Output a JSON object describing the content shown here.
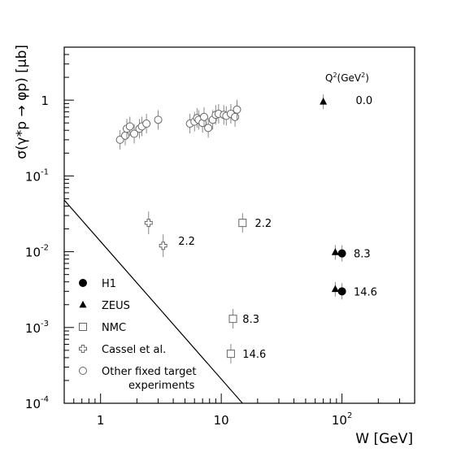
{
  "chart_data": {
    "type": "scatter",
    "xscale": "log",
    "yscale": "log",
    "xlim": [
      0.5,
      400
    ],
    "ylim": [
      0.0001,
      5
    ],
    "xlabel": "W [GeV]",
    "ylabel": "σ(γ*p → φp) [μb]",
    "xticks": [
      {
        "value": 1,
        "label": "1"
      },
      {
        "value": 10,
        "label": "10"
      },
      {
        "value": 100,
        "label": "10",
        "exp": "2"
      }
    ],
    "yticks": [
      {
        "value": 1,
        "label": "1"
      },
      {
        "value": 0.1,
        "label": "10",
        "exp": "-1"
      },
      {
        "value": 0.01,
        "label": "10",
        "exp": "-2"
      },
      {
        "value": 0.001,
        "label": "10",
        "exp": "-3"
      },
      {
        "value": 0.0001,
        "label": "10",
        "exp": "-4"
      }
    ],
    "q2_header": {
      "text": "Q",
      "sup": "2",
      "rest": "(GeV",
      "sup2": "2",
      "end": ")"
    },
    "q2_labels": [
      {
        "text": "0.0",
        "x": 130,
        "y": 1.0
      },
      {
        "text": "8.3",
        "x": 125,
        "y": 0.0095
      },
      {
        "text": "14.6",
        "x": 125,
        "y": 0.003
      },
      {
        "text": "2.2",
        "x": 19,
        "y": 0.024
      },
      {
        "text": "8.3",
        "x": 15,
        "y": 0.0013
      },
      {
        "text": "14.6",
        "x": 15,
        "y": 0.00045
      },
      {
        "text": "2.2",
        "x": 4.4,
        "y": 0.014
      }
    ],
    "series": [
      {
        "name": "H1",
        "marker": "filled-circle",
        "points": [
          {
            "x": 100,
            "y": 0.0095
          },
          {
            "x": 100,
            "y": 0.003
          }
        ]
      },
      {
        "name": "ZEUS",
        "marker": "filled-triangle",
        "points": [
          {
            "x": 70,
            "y": 0.95
          },
          {
            "x": 88,
            "y": 0.0098
          },
          {
            "x": 88,
            "y": 0.0032
          }
        ]
      },
      {
        "name": "NMC",
        "marker": "open-square",
        "points": [
          {
            "x": 15,
            "y": 0.024
          },
          {
            "x": 12.5,
            "y": 0.0013
          },
          {
            "x": 12,
            "y": 0.00045
          }
        ]
      },
      {
        "name": "Cassel et al.",
        "marker": "open-cross",
        "points": [
          {
            "x": 2.5,
            "y": 0.024
          },
          {
            "x": 3.3,
            "y": 0.012
          }
        ]
      },
      {
        "name": "Other fixed target experiments",
        "marker": "open-circle",
        "points": [
          {
            "x": 1.45,
            "y": 0.3
          },
          {
            "x": 1.6,
            "y": 0.34
          },
          {
            "x": 1.65,
            "y": 0.42
          },
          {
            "x": 1.75,
            "y": 0.45
          },
          {
            "x": 1.9,
            "y": 0.36
          },
          {
            "x": 2.1,
            "y": 0.42
          },
          {
            "x": 2.2,
            "y": 0.45
          },
          {
            "x": 2.4,
            "y": 0.49
          },
          {
            "x": 3.0,
            "y": 0.55
          },
          {
            "x": 5.5,
            "y": 0.49
          },
          {
            "x": 6.0,
            "y": 0.52
          },
          {
            "x": 6.3,
            "y": 0.58
          },
          {
            "x": 6.5,
            "y": 0.55
          },
          {
            "x": 7.0,
            "y": 0.5
          },
          {
            "x": 7.2,
            "y": 0.6
          },
          {
            "x": 7.8,
            "y": 0.43
          },
          {
            "x": 8.5,
            "y": 0.55
          },
          {
            "x": 9.0,
            "y": 0.64
          },
          {
            "x": 9.5,
            "y": 0.66
          },
          {
            "x": 10.5,
            "y": 0.64
          },
          {
            "x": 11.0,
            "y": 0.62
          },
          {
            "x": 12.0,
            "y": 0.66
          },
          {
            "x": 13.0,
            "y": 0.6
          },
          {
            "x": 13.5,
            "y": 0.75
          }
        ]
      }
    ],
    "curve": {
      "points": [
        {
          "x": 0.5,
          "y": 0.048
        },
        {
          "x": 15,
          "y": 0.0001
        }
      ]
    },
    "legend": {
      "placement": "bottom-left",
      "entries": [
        {
          "marker": "filled-circle",
          "lines": [
            "H1"
          ]
        },
        {
          "marker": "filled-triangle",
          "lines": [
            "ZEUS"
          ]
        },
        {
          "marker": "open-square",
          "lines": [
            "NMC"
          ]
        },
        {
          "marker": "open-cross",
          "lines": [
            "Cassel et al."
          ]
        },
        {
          "marker": "open-circle",
          "lines": [
            "Other fixed target",
            "experiments"
          ]
        }
      ]
    },
    "grid": false
  }
}
